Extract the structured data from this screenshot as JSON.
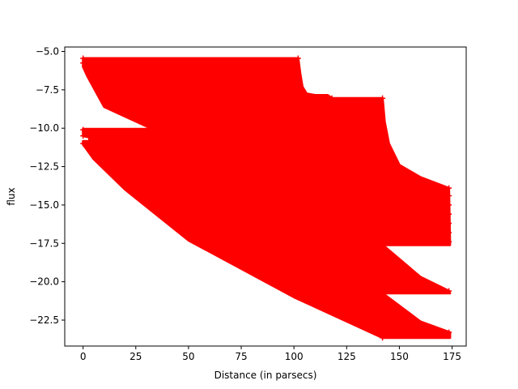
{
  "chart_data": {
    "type": "area",
    "title": "",
    "xlabel": "Distance (in parsecs)",
    "ylabel": "flux",
    "xlim": [
      -8.7,
      181.7
    ],
    "ylim": [
      -24.19,
      -4.71
    ],
    "grid": false,
    "x_ticks": [
      0,
      25,
      50,
      75,
      100,
      125,
      150,
      175
    ],
    "x_tick_labels": [
      "0",
      "25",
      "50",
      "75",
      "100",
      "125",
      "150",
      "175"
    ],
    "y_ticks": [
      -5.0,
      -7.5,
      -10.0,
      -12.5,
      -15.0,
      -17.5,
      -20.0,
      -22.5
    ],
    "y_tick_labels": [
      "−5.0",
      "−7.5",
      "−10.0",
      "−12.5",
      "−15.0",
      "−17.5",
      "−20.0",
      "−22.5"
    ],
    "marker": "+",
    "series": [
      {
        "color": "#ff0000",
        "polygon": [
          [
            0,
            -5.45
          ],
          [
            102,
            -5.45
          ],
          [
            103,
            -6.5
          ],
          [
            104,
            -7.3
          ],
          [
            106,
            -7.75
          ],
          [
            110,
            -7.85
          ],
          [
            116,
            -7.85
          ],
          [
            118,
            -8.05
          ],
          [
            142,
            -8.05
          ],
          [
            143,
            -9.6
          ],
          [
            145,
            -11.0
          ],
          [
            150,
            -12.4
          ],
          [
            160,
            -13.2
          ],
          [
            173.5,
            -13.9
          ],
          [
            174,
            -17.6
          ],
          [
            142,
            -17.6
          ],
          [
            160,
            -19.7
          ],
          [
            173.5,
            -20.6
          ],
          [
            174,
            -20.75
          ],
          [
            142,
            -20.75
          ],
          [
            160,
            -22.6
          ],
          [
            174,
            -23.3
          ],
          [
            174,
            -23.65
          ],
          [
            142,
            -23.65
          ],
          [
            100,
            -21.0
          ],
          [
            50,
            -17.3
          ],
          [
            20,
            -14.0
          ],
          [
            5,
            -12.0
          ],
          [
            0,
            -11.05
          ],
          [
            0,
            -10.85
          ],
          [
            3,
            -10.85
          ],
          [
            3,
            -10.6
          ],
          [
            0,
            -10.5
          ],
          [
            0,
            -10.05
          ],
          [
            33,
            -10.05
          ],
          [
            10,
            -8.6
          ],
          [
            2,
            -6.6
          ],
          [
            0,
            -6.0
          ]
        ]
      }
    ],
    "markers_sample": [
      [
        0,
        -5.45
      ],
      [
        0,
        -5.75
      ],
      [
        0,
        -10.1
      ],
      [
        0,
        -10.5
      ],
      [
        0,
        -11.0
      ],
      [
        102,
        -5.45
      ],
      [
        118,
        -8.05
      ],
      [
        142,
        -8.05
      ],
      [
        142,
        -17.6
      ],
      [
        142,
        -20.75
      ],
      [
        142,
        -23.65
      ],
      [
        173.5,
        -13.9
      ],
      [
        173.5,
        -14.4
      ],
      [
        173.5,
        -15.0
      ],
      [
        173.5,
        -15.6
      ],
      [
        173.5,
        -16.2
      ],
      [
        173.5,
        -16.8
      ],
      [
        173.5,
        -17.4
      ],
      [
        173.5,
        -20.6
      ],
      [
        173.5,
        -23.3
      ]
    ]
  }
}
